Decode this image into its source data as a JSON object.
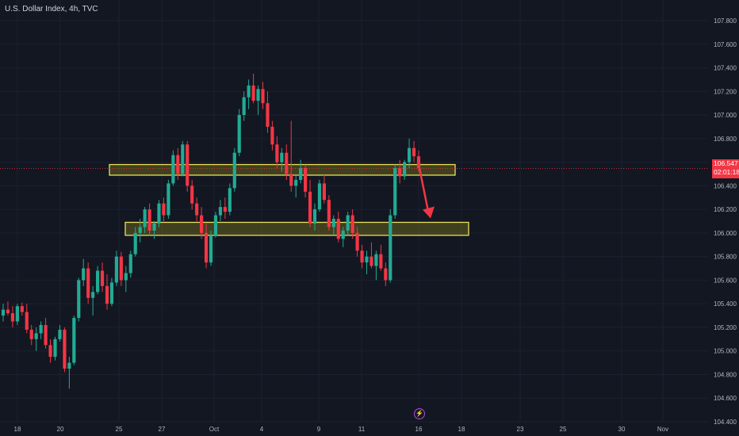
{
  "chart_data": {
    "type": "candlestick",
    "title": "U.S. Dollar Index, 4h, TVC",
    "y_ticks": [
      "107.800",
      "107.600",
      "107.400",
      "107.200",
      "107.000",
      "106.800",
      "106.600",
      "106.400",
      "106.200",
      "106.000",
      "105.800",
      "105.600",
      "105.400",
      "105.200",
      "105.000",
      "104.800",
      "104.600",
      "104.400"
    ],
    "y_range": [
      104.4,
      107.9
    ],
    "x_ticks": [
      "18",
      "20",
      "25",
      "27",
      "Oct",
      "4",
      "9",
      "11",
      "16",
      "18",
      "23",
      "25",
      "30",
      "Nov"
    ],
    "current_price": "106.547",
    "countdown": "02:01:18",
    "zones": [
      {
        "name": "resistance-zone",
        "low": 106.49,
        "high": 106.58
      },
      {
        "name": "support-zone",
        "low": 105.98,
        "high": 106.09
      }
    ],
    "annotation": "projected move down from 106.55 to 106.13",
    "candles": [
      [
        105.3,
        105.4,
        105.25,
        105.35
      ],
      [
        105.35,
        105.42,
        105.3,
        105.32
      ],
      [
        105.32,
        105.38,
        105.2,
        105.25
      ],
      [
        105.25,
        105.4,
        105.22,
        105.38
      ],
      [
        105.38,
        105.41,
        105.3,
        105.33
      ],
      [
        105.33,
        105.4,
        105.15,
        105.18
      ],
      [
        105.18,
        105.22,
        105.05,
        105.1
      ],
      [
        105.1,
        105.2,
        105.0,
        105.15
      ],
      [
        105.15,
        105.25,
        105.1,
        105.22
      ],
      [
        105.22,
        105.28,
        105.02,
        105.05
      ],
      [
        105.05,
        105.1,
        104.9,
        104.95
      ],
      [
        104.95,
        105.12,
        104.92,
        105.1
      ],
      [
        105.1,
        105.22,
        105.08,
        105.18
      ],
      [
        105.18,
        105.2,
        104.82,
        104.85
      ],
      [
        104.85,
        104.95,
        104.68,
        104.9
      ],
      [
        104.9,
        105.3,
        104.88,
        105.28
      ],
      [
        105.28,
        105.62,
        105.25,
        105.6
      ],
      [
        105.6,
        105.78,
        105.55,
        105.7
      ],
      [
        105.7,
        105.75,
        105.4,
        105.45
      ],
      [
        105.45,
        105.55,
        105.3,
        105.5
      ],
      [
        105.5,
        105.72,
        105.48,
        105.68
      ],
      [
        105.68,
        105.75,
        105.5,
        105.55
      ],
      [
        105.55,
        105.65,
        105.35,
        105.4
      ],
      [
        105.4,
        105.62,
        105.38,
        105.58
      ],
      [
        105.58,
        105.85,
        105.55,
        105.8
      ],
      [
        105.8,
        105.84,
        105.55,
        105.6
      ],
      [
        105.6,
        105.72,
        105.5,
        105.66
      ],
      [
        105.66,
        105.85,
        105.62,
        105.82
      ],
      [
        105.82,
        106.05,
        105.8,
        106.0
      ],
      [
        106.0,
        106.12,
        105.92,
        106.05
      ],
      [
        106.05,
        106.22,
        106.0,
        106.2
      ],
      [
        106.2,
        106.25,
        105.98,
        106.02
      ],
      [
        106.02,
        106.1,
        105.95,
        106.08
      ],
      [
        106.08,
        106.28,
        106.05,
        106.25
      ],
      [
        106.25,
        106.3,
        106.1,
        106.15
      ],
      [
        106.15,
        106.45,
        106.12,
        106.42
      ],
      [
        106.42,
        106.7,
        106.4,
        106.66
      ],
      [
        106.66,
        106.72,
        106.45,
        106.5
      ],
      [
        106.5,
        106.78,
        106.48,
        106.75
      ],
      [
        106.75,
        106.78,
        106.35,
        106.4
      ],
      [
        106.4,
        106.45,
        106.2,
        106.25
      ],
      [
        106.25,
        106.3,
        106.1,
        106.15
      ],
      [
        106.15,
        106.22,
        105.95,
        106.0
      ],
      [
        106.0,
        106.08,
        105.7,
        105.75
      ],
      [
        105.75,
        106.02,
        105.72,
        105.98
      ],
      [
        105.98,
        106.18,
        105.96,
        106.15
      ],
      [
        106.15,
        106.28,
        106.1,
        106.22
      ],
      [
        106.22,
        106.3,
        106.12,
        106.18
      ],
      [
        106.18,
        106.42,
        106.15,
        106.38
      ],
      [
        106.38,
        106.72,
        106.35,
        106.68
      ],
      [
        106.68,
        107.05,
        106.65,
        107.0
      ],
      [
        107.0,
        107.2,
        106.95,
        107.15
      ],
      [
        107.15,
        107.3,
        107.05,
        107.25
      ],
      [
        107.25,
        107.35,
        107.1,
        107.12
      ],
      [
        107.12,
        107.25,
        107.0,
        107.22
      ],
      [
        107.22,
        107.28,
        107.05,
        107.1
      ],
      [
        107.1,
        107.2,
        106.85,
        106.9
      ],
      [
        106.9,
        106.95,
        106.7,
        106.75
      ],
      [
        106.75,
        106.82,
        106.55,
        106.6
      ],
      [
        106.6,
        106.72,
        106.52,
        106.68
      ],
      [
        106.68,
        106.75,
        106.45,
        106.5
      ],
      [
        106.5,
        106.95,
        106.35,
        106.4
      ],
      [
        106.4,
        106.5,
        106.3,
        106.45
      ],
      [
        106.45,
        106.62,
        106.42,
        106.55
      ],
      [
        106.55,
        106.58,
        106.3,
        106.35
      ],
      [
        106.35,
        106.45,
        106.05,
        106.08
      ],
      [
        106.08,
        106.25,
        106.02,
        106.2
      ],
      [
        106.2,
        106.45,
        106.18,
        106.42
      ],
      [
        106.42,
        106.5,
        106.25,
        106.28
      ],
      [
        106.28,
        106.32,
        106.02,
        106.05
      ],
      [
        106.05,
        106.15,
        105.98,
        106.12
      ],
      [
        106.12,
        106.18,
        105.92,
        105.95
      ],
      [
        105.95,
        106.05,
        105.88,
        106.02
      ],
      [
        106.02,
        106.18,
        105.98,
        106.15
      ],
      [
        106.15,
        106.2,
        105.95,
        106.0
      ],
      [
        106.0,
        106.05,
        105.8,
        105.85
      ],
      [
        105.85,
        105.9,
        105.7,
        105.75
      ],
      [
        105.75,
        105.85,
        105.65,
        105.8
      ],
      [
        105.8,
        105.92,
        105.7,
        105.72
      ],
      [
        105.72,
        105.85,
        105.6,
        105.82
      ],
      [
        105.82,
        105.9,
        105.68,
        105.7
      ],
      [
        105.7,
        105.75,
        105.55,
        105.6
      ],
      [
        105.6,
        106.2,
        105.58,
        106.15
      ],
      [
        106.15,
        106.58,
        106.12,
        106.55
      ],
      [
        106.55,
        106.62,
        106.42,
        106.48
      ],
      [
        106.48,
        106.62,
        106.45,
        106.6
      ],
      [
        106.6,
        106.8,
        106.55,
        106.72
      ],
      [
        106.72,
        106.78,
        106.6,
        106.65
      ],
      [
        106.65,
        106.7,
        106.52,
        106.55
      ]
    ]
  }
}
